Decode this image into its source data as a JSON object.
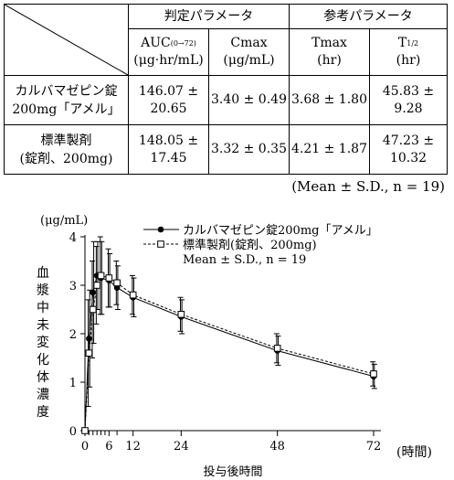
{
  "table": {
    "group_headers": {
      "judgement": "判定パラメータ",
      "reference": "参考パラメータ"
    },
    "columns": [
      {
        "main": "AUC",
        "sub": "(0→72)",
        "unit": "(μg·hr/mL)"
      },
      {
        "main": "Cmax",
        "sub": "",
        "unit": "(μg/mL)"
      },
      {
        "main": "Tmax",
        "sub": "",
        "unit": "(hr)"
      },
      {
        "main": "T",
        "sub": "1/2",
        "unit": "(hr)"
      }
    ],
    "rows": [
      {
        "name_line1": "カルバマゼピン錠",
        "name_line2": "200mg「アメル」",
        "auc_l1": "146.07 ±",
        "auc_l2": "20.65",
        "cmax": "3.40 ± 0.49",
        "tmax": "3.68 ± 1.80",
        "t12_l1": "45.83 ±",
        "t12_l2": "9.28"
      },
      {
        "name_line1": "標準製剤",
        "name_line2": "(錠剤、200mg)",
        "auc_l1": "148.05 ±",
        "auc_l2": "17.45",
        "cmax": "3.32 ± 0.35",
        "tmax": "4.21 ± 1.87",
        "t12_l1": "47.23 ±",
        "t12_l2": "10.32"
      }
    ]
  },
  "footnote": "(Mean ± S.D.,  n = 19)",
  "chart_data": {
    "type": "line",
    "y_unit_label": "(μg/mL)",
    "ylabel": "血漿中未変化体濃度",
    "xlabel": "投与後時間",
    "x_unit_label": "(時間)",
    "x_ticks": [
      0,
      6,
      12,
      24,
      48,
      72
    ],
    "x_tick_labels": [
      "0",
      "6",
      "12",
      "24",
      "48",
      "72"
    ],
    "x_minor_ticks": [
      1,
      2,
      3,
      4,
      5,
      8
    ],
    "y_ticks": [
      0,
      1,
      2,
      3,
      4
    ],
    "xlim": [
      0,
      72
    ],
    "ylim": [
      0,
      4
    ],
    "legend_note": "Mean ± S.D.,  n = 19",
    "series": [
      {
        "name": "カルバマゼピン錠200mg「アメル」",
        "marker": "filled-circle",
        "line": "solid",
        "x": [
          0,
          1,
          2,
          3,
          4,
          6,
          8,
          12,
          24,
          48,
          72
        ],
        "y": [
          0,
          1.9,
          2.85,
          3.2,
          3.15,
          3.1,
          2.95,
          2.75,
          2.35,
          1.65,
          1.12
        ],
        "sd": [
          0,
          1.0,
          1.05,
          0.7,
          0.75,
          0.55,
          0.45,
          0.4,
          0.35,
          0.3,
          0.25
        ]
      },
      {
        "name": "標準製剤(錠剤、200mg)",
        "marker": "open-square",
        "line": "dashed",
        "x": [
          0,
          1,
          2,
          3,
          4,
          6,
          8,
          12,
          24,
          48,
          72
        ],
        "y": [
          0,
          1.6,
          2.5,
          3.0,
          3.2,
          3.15,
          3.05,
          2.8,
          2.4,
          1.7,
          1.17
        ],
        "sd": [
          0,
          1.1,
          1.0,
          0.8,
          0.8,
          0.6,
          0.45,
          0.4,
          0.35,
          0.3,
          0.25
        ]
      }
    ]
  }
}
